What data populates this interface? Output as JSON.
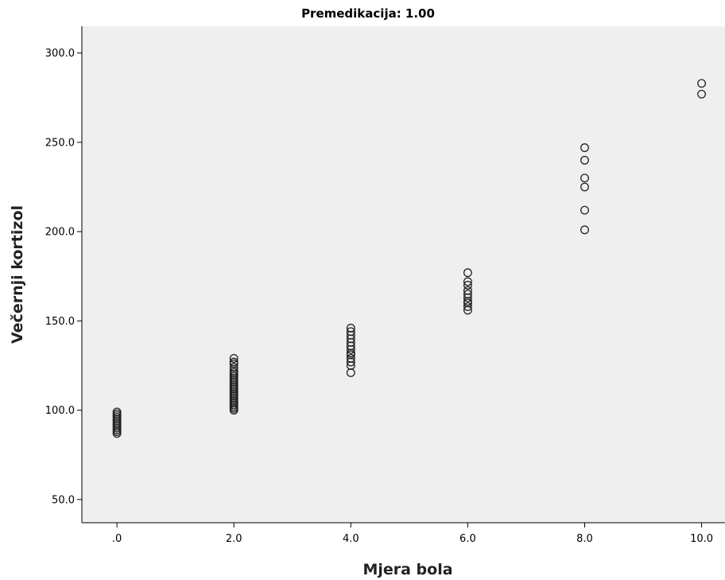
{
  "chart_data": {
    "type": "scatter",
    "title": "Premedikacija: 1.00",
    "xlabel": "Mjera bola",
    "ylabel": "Večernji kortizol",
    "xlim": [
      -0.6,
      10.4
    ],
    "ylim": [
      37,
      315
    ],
    "xticks": [
      0,
      2,
      4,
      6,
      8,
      10
    ],
    "xtick_labels": [
      ".0",
      "2.0",
      "4.0",
      "6.0",
      "8.0",
      "10.0"
    ],
    "yticks": [
      50,
      100,
      150,
      200,
      250,
      300
    ],
    "ytick_labels": [
      "50.0",
      "100.0",
      "150.0",
      "200.0",
      "250.0",
      "300.0"
    ],
    "grid": false,
    "plot_background": "#efefef",
    "marker_color": "#222222",
    "series": [
      {
        "points": [
          [
            0,
            87
          ],
          [
            0,
            88
          ],
          [
            0,
            89
          ],
          [
            0,
            90
          ],
          [
            0,
            91
          ],
          [
            0,
            92
          ],
          [
            0,
            93
          ],
          [
            0,
            94
          ],
          [
            0,
            95
          ],
          [
            0,
            96
          ],
          [
            0,
            97
          ],
          [
            0,
            98
          ],
          [
            0,
            99
          ],
          [
            2,
            100
          ],
          [
            2,
            101
          ],
          [
            2,
            102
          ],
          [
            2,
            103
          ],
          [
            2,
            104
          ],
          [
            2,
            105
          ],
          [
            2,
            106
          ],
          [
            2,
            107
          ],
          [
            2,
            108
          ],
          [
            2,
            109
          ],
          [
            2,
            110
          ],
          [
            2,
            111
          ],
          [
            2,
            112
          ],
          [
            2,
            113
          ],
          [
            2,
            114
          ],
          [
            2,
            115
          ],
          [
            2,
            116
          ],
          [
            2,
            117
          ],
          [
            2,
            118
          ],
          [
            2,
            119
          ],
          [
            2,
            120
          ],
          [
            2,
            121
          ],
          [
            2,
            122
          ],
          [
            2,
            124
          ],
          [
            2,
            126
          ],
          [
            2,
            127
          ],
          [
            2,
            129
          ],
          [
            4,
            121
          ],
          [
            4,
            125
          ],
          [
            4,
            127
          ],
          [
            4,
            129
          ],
          [
            4,
            131
          ],
          [
            4,
            132
          ],
          [
            4,
            134
          ],
          [
            4,
            136
          ],
          [
            4,
            138
          ],
          [
            4,
            140
          ],
          [
            4,
            142
          ],
          [
            4,
            144
          ],
          [
            4,
            146
          ],
          [
            6,
            156
          ],
          [
            6,
            158
          ],
          [
            6,
            160
          ],
          [
            6,
            161
          ],
          [
            6,
            163
          ],
          [
            6,
            165
          ],
          [
            6,
            167
          ],
          [
            6,
            170
          ],
          [
            6,
            172
          ],
          [
            6,
            177
          ],
          [
            8,
            201
          ],
          [
            8,
            212
          ],
          [
            8,
            225
          ],
          [
            8,
            230
          ],
          [
            8,
            240
          ],
          [
            8,
            247
          ],
          [
            10,
            277
          ],
          [
            10,
            283
          ]
        ]
      }
    ]
  }
}
